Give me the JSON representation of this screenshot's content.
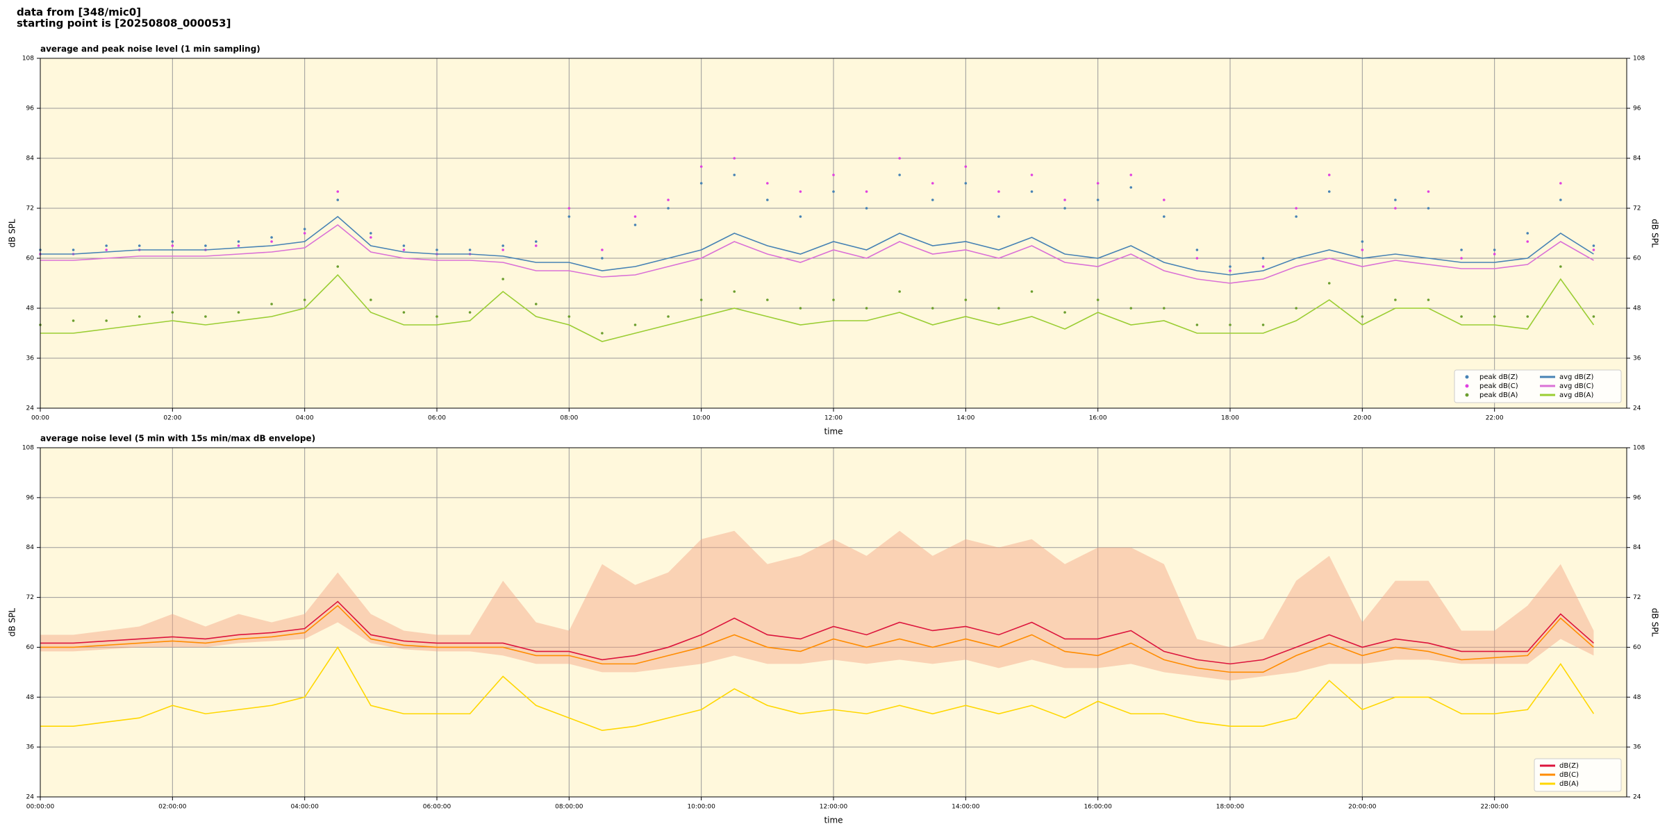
{
  "header": {
    "lines": [
      "data from [348/mic0]",
      "starting point is [20250808_000053]"
    ]
  },
  "chart_data": [
    {
      "type": "line",
      "title": "average and peak noise level (1 min sampling)",
      "xlabel": "time",
      "ylabel": "dB SPL",
      "x": [
        0,
        0.5,
        1,
        1.5,
        2,
        2.5,
        3,
        3.5,
        4,
        4.5,
        5,
        5.5,
        6,
        6.5,
        7,
        7.5,
        8,
        8.5,
        9,
        9.5,
        10,
        10.5,
        11,
        11.5,
        12,
        12.5,
        13,
        13.5,
        14,
        14.5,
        15,
        15.5,
        16,
        16.5,
        17,
        17.5,
        18,
        18.5,
        19,
        19.5,
        20,
        20.5,
        21,
        21.5,
        22,
        22.5,
        23,
        23.5
      ],
      "xlim": [
        0,
        24
      ],
      "xticks": [
        {
          "value": 0,
          "label": "00:00"
        },
        {
          "value": 2,
          "label": "02:00"
        },
        {
          "value": 4,
          "label": "04:00"
        },
        {
          "value": 6,
          "label": "06:00"
        },
        {
          "value": 8,
          "label": "08:00"
        },
        {
          "value": 10,
          "label": "10:00"
        },
        {
          "value": 12,
          "label": "12:00"
        },
        {
          "value": 14,
          "label": "14:00"
        },
        {
          "value": 16,
          "label": "16:00"
        },
        {
          "value": 18,
          "label": "18:00"
        },
        {
          "value": 20,
          "label": "20:00"
        },
        {
          "value": 22,
          "label": "22:00"
        }
      ],
      "ylim": [
        24,
        108
      ],
      "yticks": [
        24,
        36,
        48,
        60,
        72,
        84,
        96,
        108
      ],
      "grid": true,
      "legend": "lower right",
      "series": [
        {
          "name": "peak dB(Z)",
          "kind": "scatter",
          "color": "#4682b4",
          "values": [
            62,
            62,
            63,
            63,
            64,
            63,
            64,
            65,
            67,
            74,
            66,
            63,
            62,
            62,
            63,
            64,
            70,
            60,
            68,
            72,
            78,
            80,
            74,
            70,
            76,
            72,
            80,
            74,
            78,
            70,
            76,
            72,
            74,
            77,
            70,
            62,
            58,
            60,
            70,
            76,
            64,
            74,
            72,
            62,
            62,
            66,
            74,
            63
          ]
        },
        {
          "name": "peak dB(C)",
          "kind": "scatter",
          "color": "#e040e0",
          "values": [
            61,
            61,
            62,
            62,
            63,
            62,
            63,
            64,
            66,
            76,
            65,
            62,
            61,
            61,
            62,
            63,
            72,
            62,
            70,
            74,
            82,
            84,
            78,
            76,
            80,
            76,
            84,
            78,
            82,
            76,
            80,
            74,
            78,
            80,
            74,
            60,
            57,
            58,
            72,
            80,
            62,
            72,
            76,
            60,
            61,
            64,
            78,
            62
          ]
        },
        {
          "name": "peak dB(A)",
          "kind": "scatter",
          "color": "#6b9e2e",
          "values": [
            44,
            45,
            45,
            46,
            47,
            46,
            47,
            49,
            50,
            58,
            50,
            47,
            46,
            47,
            55,
            49,
            46,
            42,
            44,
            46,
            50,
            52,
            50,
            48,
            50,
            48,
            52,
            48,
            50,
            48,
            52,
            47,
            50,
            48,
            48,
            44,
            44,
            44,
            48,
            54,
            46,
            50,
            50,
            46,
            46,
            46,
            58,
            46
          ]
        },
        {
          "name": "avg dB(Z)",
          "kind": "line",
          "color": "#4682b4",
          "values": [
            61,
            61,
            61.5,
            62,
            62,
            62,
            62.5,
            63,
            64,
            70,
            63,
            61.5,
            61,
            61,
            60.5,
            59,
            59,
            57,
            58,
            60,
            62,
            66,
            63,
            61,
            64,
            62,
            66,
            63,
            64,
            62,
            65,
            61,
            60,
            63,
            59,
            57,
            56,
            57,
            60,
            62,
            60,
            61,
            60,
            59,
            59,
            60,
            66,
            61
          ]
        },
        {
          "name": "avg dB(C)",
          "kind": "line",
          "color": "#da70d6",
          "values": [
            59.5,
            59.5,
            60,
            60.5,
            60.5,
            60.5,
            61,
            61.5,
            62.5,
            68,
            61.5,
            60,
            59.5,
            59.5,
            59,
            57,
            57,
            55.5,
            56,
            58,
            60,
            64,
            61,
            59,
            62,
            60,
            64,
            61,
            62,
            60,
            63,
            59,
            58,
            61,
            57,
            55,
            54,
            55,
            58,
            60,
            58,
            59.5,
            58.5,
            57.5,
            57.5,
            58.5,
            64,
            59.5
          ]
        },
        {
          "name": "avg dB(A)",
          "kind": "line",
          "color": "#9acd32",
          "values": [
            42,
            42,
            43,
            44,
            45,
            44,
            45,
            46,
            48,
            56,
            47,
            44,
            44,
            45,
            52,
            46,
            44,
            40,
            42,
            44,
            46,
            48,
            46,
            44,
            45,
            45,
            47,
            44,
            46,
            44,
            46,
            43,
            47,
            44,
            45,
            42,
            42,
            42,
            45,
            50,
            44,
            48,
            48,
            44,
            44,
            43,
            55,
            44
          ]
        }
      ]
    },
    {
      "type": "line",
      "title": "average noise level (5 min with 15s min/max dB envelope)",
      "xlabel": "time",
      "ylabel": "dB SPL",
      "x": [
        0,
        0.5,
        1,
        1.5,
        2,
        2.5,
        3,
        3.5,
        4,
        4.5,
        5,
        5.5,
        6,
        6.5,
        7,
        7.5,
        8,
        8.5,
        9,
        9.5,
        10,
        10.5,
        11,
        11.5,
        12,
        12.5,
        13,
        13.5,
        14,
        14.5,
        15,
        15.5,
        16,
        16.5,
        17,
        17.5,
        18,
        18.5,
        19,
        19.5,
        20,
        20.5,
        21,
        21.5,
        22,
        22.5,
        23,
        23.5
      ],
      "xlim": [
        0,
        24
      ],
      "xticks": [
        {
          "value": 0,
          "label": "00:00:00"
        },
        {
          "value": 2,
          "label": "02:00:00"
        },
        {
          "value": 4,
          "label": "04:00:00"
        },
        {
          "value": 6,
          "label": "06:00:00"
        },
        {
          "value": 8,
          "label": "08:00:00"
        },
        {
          "value": 10,
          "label": "10:00:00"
        },
        {
          "value": 12,
          "label": "12:00:00"
        },
        {
          "value": 14,
          "label": "14:00:00"
        },
        {
          "value": 16,
          "label": "16:00:00"
        },
        {
          "value": 18,
          "label": "18:00:00"
        },
        {
          "value": 20,
          "label": "20:00:00"
        },
        {
          "value": 22,
          "label": "22:00:00"
        }
      ],
      "ylim": [
        24,
        108
      ],
      "yticks": [
        24,
        36,
        48,
        60,
        72,
        84,
        96,
        108
      ],
      "grid": true,
      "legend": "lower right",
      "envelope": {
        "color": "#f4a582",
        "low": [
          59,
          59,
          59.5,
          60,
          60,
          60,
          61,
          61.5,
          62,
          66,
          61,
          59.5,
          59,
          59,
          58,
          56,
          56,
          54,
          54,
          55,
          56,
          58,
          56,
          56,
          57,
          56,
          57,
          56,
          57,
          55,
          57,
          55,
          55,
          56,
          54,
          53,
          52,
          53,
          54,
          56,
          56,
          57,
          57,
          56,
          56,
          56,
          62,
          58
        ],
        "high": [
          63,
          63,
          64,
          65,
          68,
          65,
          68,
          66,
          68,
          78,
          68,
          64,
          63,
          63,
          76,
          66,
          64,
          80,
          75,
          78,
          86,
          88,
          80,
          82,
          86,
          82,
          88,
          82,
          86,
          84,
          86,
          80,
          84,
          84,
          80,
          62,
          60,
          62,
          76,
          82,
          66,
          76,
          76,
          64,
          64,
          70,
          80,
          64
        ]
      },
      "series": [
        {
          "name": "dB(Z)",
          "kind": "line",
          "color": "#dc143c",
          "values": [
            61,
            61,
            61.5,
            62,
            62.5,
            62,
            63,
            63.5,
            64.5,
            71,
            63,
            61.5,
            61,
            61,
            61,
            59,
            59,
            57,
            58,
            60,
            63,
            67,
            63,
            62,
            65,
            63,
            66,
            64,
            65,
            63,
            66,
            62,
            62,
            64,
            59,
            57,
            56,
            57,
            60,
            63,
            60,
            62,
            61,
            59,
            59,
            59,
            68,
            61
          ]
        },
        {
          "name": "dB(C)",
          "kind": "line",
          "color": "#ff8c00",
          "values": [
            60,
            60,
            60.5,
            61,
            61.5,
            61,
            62,
            62.5,
            63.5,
            70,
            62,
            60.5,
            60,
            60,
            60,
            58,
            58,
            56,
            56,
            58,
            60,
            63,
            60,
            59,
            62,
            60,
            62,
            60,
            62,
            60,
            63,
            59,
            58,
            61,
            57,
            55,
            54,
            54,
            58,
            61,
            58,
            60,
            59,
            57,
            57.5,
            58,
            67,
            60
          ]
        },
        {
          "name": "dB(A)",
          "kind": "line",
          "color": "#ffd700",
          "values": [
            41,
            41,
            42,
            43,
            46,
            44,
            45,
            46,
            48,
            60,
            46,
            44,
            44,
            44,
            53,
            46,
            43,
            40,
            41,
            43,
            45,
            50,
            46,
            44,
            45,
            44,
            46,
            44,
            46,
            44,
            46,
            43,
            47,
            44,
            44,
            42,
            41,
            41,
            43,
            52,
            45,
            48,
            48,
            44,
            44,
            45,
            56,
            44
          ]
        }
      ]
    }
  ]
}
